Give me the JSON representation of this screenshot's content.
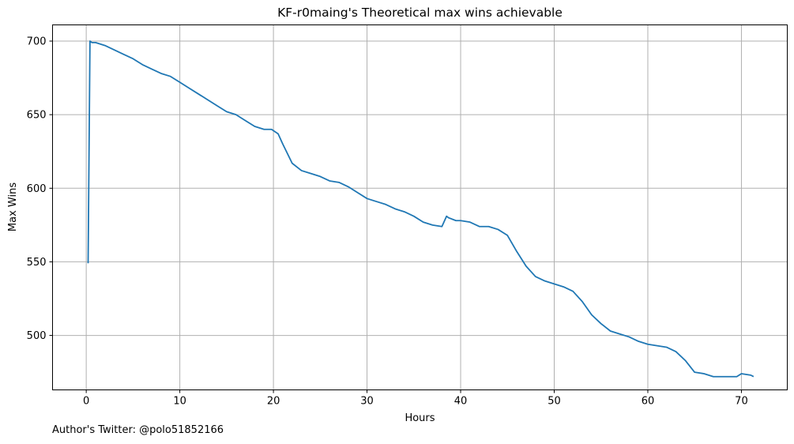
{
  "footer_text": "Author's Twitter: @polo51852166",
  "chart_data": {
    "type": "line",
    "title": "KF-r0maing's Theoretical max wins achievable",
    "xlabel": "Hours",
    "ylabel": "Max Wins",
    "xlim": [
      -3.6,
      74.9
    ],
    "ylim": [
      463,
      711
    ],
    "xticks": [
      0,
      10,
      20,
      30,
      40,
      50,
      60,
      70
    ],
    "yticks": [
      500,
      550,
      600,
      650,
      700
    ],
    "grid": true,
    "line_color": "#1f77b4",
    "series": [
      {
        "x": [
          0.2,
          0.4,
          0.6,
          1,
          1.5,
          2,
          3,
          4,
          5,
          6,
          7,
          8,
          9,
          10,
          11,
          12,
          13,
          14,
          15,
          16,
          17,
          18,
          19,
          19.8,
          20.5,
          21,
          22,
          23,
          24,
          25,
          26,
          27,
          28,
          29,
          30,
          31,
          32,
          33,
          34,
          35,
          36,
          37,
          38,
          38.5,
          38.7,
          39.5,
          40,
          41,
          42,
          43,
          44,
          45,
          46,
          47,
          48,
          49,
          50,
          51,
          52,
          53,
          54,
          55,
          56,
          57,
          58,
          59,
          60,
          61,
          62,
          63,
          64,
          65,
          66,
          67,
          68,
          69,
          69.5,
          70,
          71,
          71.3
        ],
        "y": [
          549,
          700,
          699,
          699,
          698,
          697,
          694,
          691,
          688,
          684,
          681,
          678,
          676,
          672,
          668,
          664,
          660,
          656,
          652,
          650,
          646,
          642,
          640,
          640,
          637,
          630,
          617,
          612,
          610,
          608,
          605,
          604,
          601,
          597,
          593,
          591,
          589,
          586,
          584,
          581,
          577,
          575,
          574,
          581,
          580,
          578,
          578,
          577,
          574,
          574,
          572,
          568,
          557,
          547,
          540,
          537,
          535,
          533,
          530,
          523,
          514,
          508,
          503,
          501,
          499,
          496,
          494,
          493,
          492,
          489,
          483,
          475,
          474,
          472,
          472,
          472,
          472,
          474,
          473,
          472
        ]
      }
    ]
  }
}
